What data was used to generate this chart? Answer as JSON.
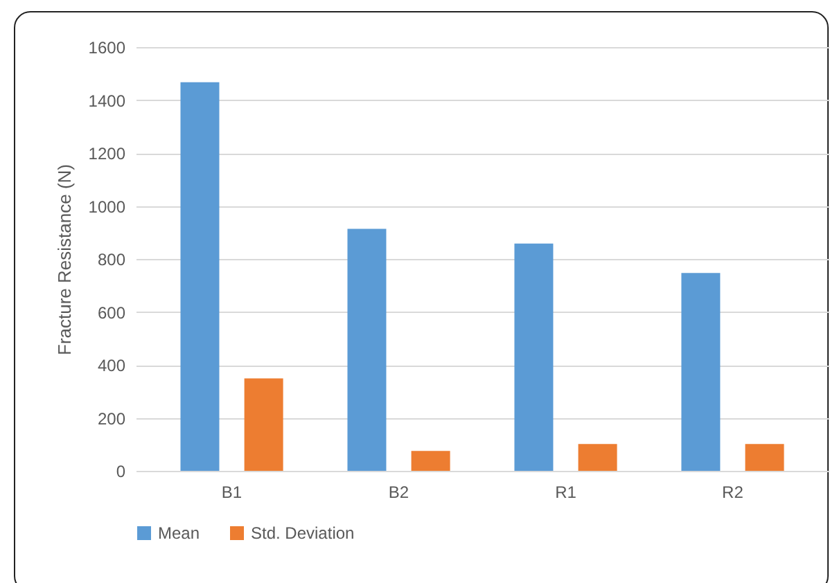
{
  "chart_data": {
    "type": "bar",
    "ylabel": "Fracture Resistance (N)",
    "categories": [
      "B1",
      "B2",
      "R1",
      "R2"
    ],
    "series": [
      {
        "name": "Mean",
        "color": "#5b9bd5",
        "values": [
          1467,
          914,
          858,
          747
        ]
      },
      {
        "name": "Std. Deviation",
        "color": "#ed7d31",
        "values": [
          349,
          75,
          101,
          101
        ]
      }
    ],
    "ylim": [
      0,
      1600
    ],
    "yticks": [
      0,
      200,
      400,
      600,
      800,
      1000,
      1200,
      1400,
      1600
    ],
    "grid": "y",
    "legend": "bottom"
  }
}
